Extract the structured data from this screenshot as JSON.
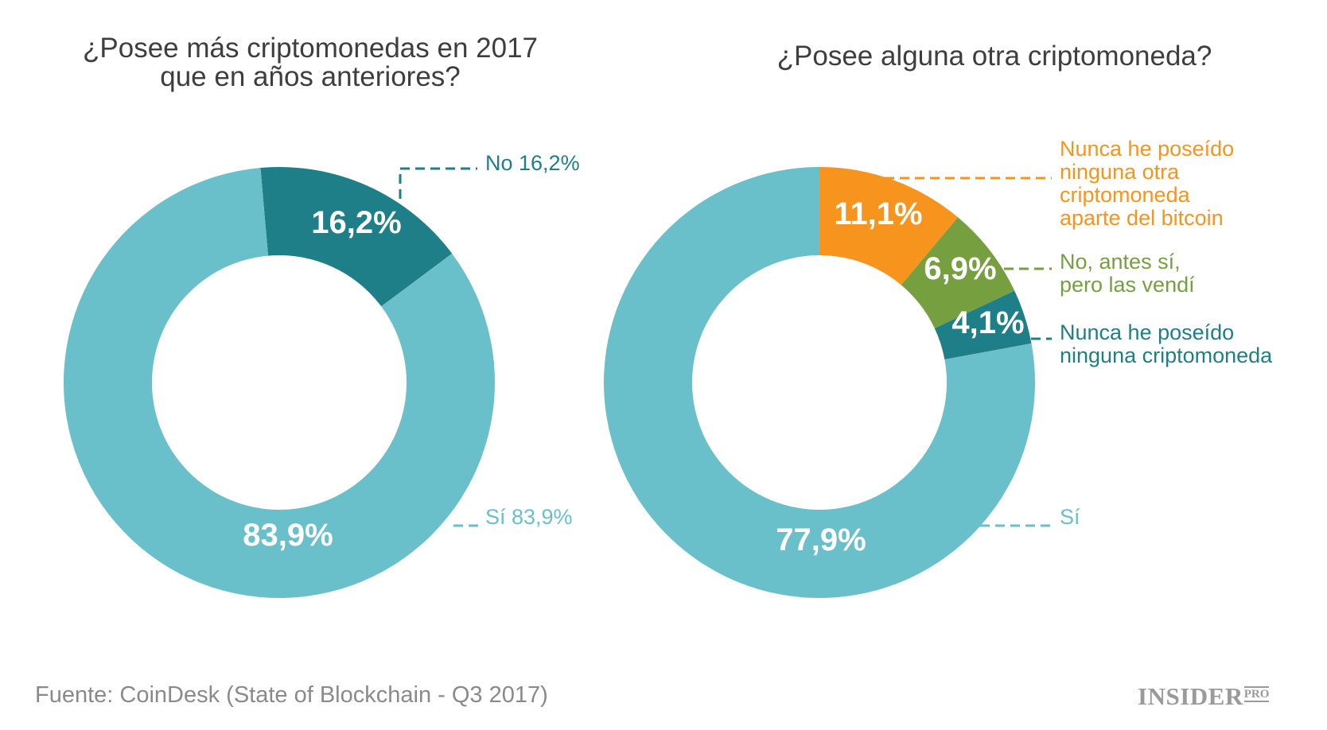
{
  "colors": {
    "light_teal": "#6ac0ca",
    "dark_teal": "#1e7f89",
    "orange": "#f7941d",
    "green": "#76a040",
    "title": "#3e3e3e",
    "source": "#8a8a8a"
  },
  "chart_data": [
    {
      "type": "pie",
      "title_lines": [
        "¿Posee más criptomonedas en 2017",
        "que en años anteriores?"
      ],
      "slices": [
        {
          "key": "no",
          "legend": "No 16,2%",
          "value": 16.2,
          "label": "16,2%",
          "color": "#1e7f89"
        },
        {
          "key": "si",
          "legend": "Sí 83,9%",
          "value": 83.9,
          "label": "83,9%",
          "color": "#6ac0ca"
        }
      ]
    },
    {
      "type": "pie",
      "title_lines": [
        "¿Posee alguna otra criptomoneda?"
      ],
      "slices": [
        {
          "key": "nunca-otra",
          "legend": [
            "Nunca he poseído",
            "ninguna otra",
            "criptomoneda",
            "aparte del bitcoin"
          ],
          "value": 11.1,
          "label": "11,1%",
          "color": "#f7941d"
        },
        {
          "key": "vendi",
          "legend": [
            "No, antes sí,",
            "pero las vendí"
          ],
          "value": 6.9,
          "label": "6,9%",
          "color": "#76a040"
        },
        {
          "key": "ninguna",
          "legend": [
            "Nunca he poseído",
            "ninguna criptomoneda"
          ],
          "value": 4.1,
          "label": "4,1%",
          "color": "#1e7f89"
        },
        {
          "key": "si",
          "legend": [
            "Sí"
          ],
          "value": 77.9,
          "label": "77,9%",
          "color": "#6ac0ca"
        }
      ]
    }
  ],
  "footer": {
    "source": "Fuente: CoinDesk (State of Blockchain - Q3 2017)",
    "brand": "INSIDER",
    "brand_sub": "PRO"
  }
}
